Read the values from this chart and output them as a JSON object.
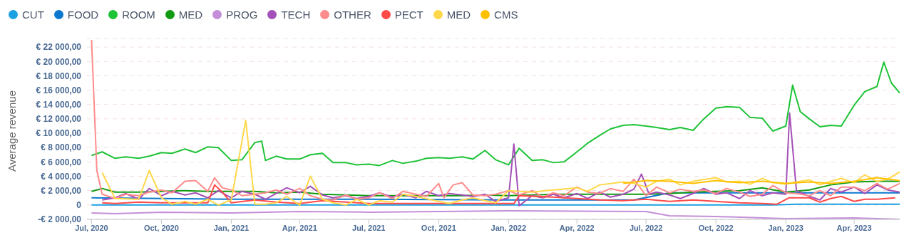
{
  "chart_data": {
    "type": "line",
    "ylabel": "Average revenue",
    "legend": "top left",
    "grid": "y",
    "marker": "none",
    "line_style": "solid",
    "xlim": [
      "2020-06-25",
      "2023-05-31"
    ],
    "xticks": [
      {
        "value": "2020-07-01",
        "label": "Jul, 2020"
      },
      {
        "value": "2020-10-01",
        "label": "Oct, 2020"
      },
      {
        "value": "2021-01-01",
        "label": "Jan, 2021"
      },
      {
        "value": "2021-04-01",
        "label": "Apr, 2021"
      },
      {
        "value": "2021-07-01",
        "label": "Jul, 2021"
      },
      {
        "value": "2021-10-01",
        "label": "Oct, 2021"
      },
      {
        "value": "2022-01-01",
        "label": "Jan, 2022"
      },
      {
        "value": "2022-04-01",
        "label": "Apr, 2022"
      },
      {
        "value": "2022-07-01",
        "label": "Jul, 2022"
      },
      {
        "value": "2022-10-01",
        "label": "Oct, 2022"
      },
      {
        "value": "2023-01-01",
        "label": "Jan, 2023"
      },
      {
        "value": "2023-04-01",
        "label": "Apr, 2023"
      }
    ],
    "ylim": [
      -2000,
      23200
    ],
    "yticks": [
      {
        "value": -2000,
        "label": "-€ 2 000,00"
      },
      0,
      {
        "value": 2000,
        "label": "€ 2 000,00"
      },
      {
        "value": 4000,
        "label": "€ 4 000,00"
      },
      {
        "value": 6000,
        "label": "€ 6 000,00"
      },
      {
        "value": 8000,
        "label": "€ 8 000,00"
      },
      {
        "value": 10000,
        "label": "€ 10 000,00"
      },
      {
        "value": 12000,
        "label": "€ 12 000,00"
      },
      {
        "value": 14000,
        "label": "€ 14 000,00"
      },
      {
        "value": 16000,
        "label": "€ 16 000,00"
      },
      {
        "value": 18000,
        "label": "€ 18 000,00"
      },
      {
        "value": 20000,
        "label": "€ 20 000,00"
      },
      {
        "value": 22000,
        "label": "€ 22 000,00"
      }
    ],
    "series": [
      {
        "name": "CUT",
        "color": "#1ba1e2",
        "x": [
          "2020-07-01",
          "2021-07-01",
          "2022-07-01",
          "2022-12-15",
          "2023-01-15",
          "2023-05-31"
        ],
        "values": [
          0,
          0,
          0,
          0,
          100,
          100
        ]
      },
      {
        "name": "FOOD",
        "color": "#0b78d0",
        "x": [
          "2020-07-01",
          "2021-01-01",
          "2021-07-01",
          "2022-01-01",
          "2022-06-15",
          "2022-08-01",
          "2023-05-31"
        ],
        "values": [
          1000,
          800,
          800,
          700,
          700,
          1700,
          1700
        ]
      },
      {
        "name": "ROOM",
        "color": "#1ec337",
        "x": [
          "2020-07-01",
          "2020-07-15",
          "2020-08-01",
          "2020-08-15",
          "2020-09-01",
          "2020-09-15",
          "2020-10-01",
          "2020-10-15",
          "2020-11-01",
          "2020-11-15",
          "2020-12-01",
          "2020-12-15",
          "2021-01-01",
          "2021-01-15",
          "2021-02-01",
          "2021-02-10",
          "2021-02-15",
          "2021-03-01",
          "2021-03-15",
          "2021-04-01",
          "2021-04-15",
          "2021-05-01",
          "2021-05-15",
          "2021-06-01",
          "2021-06-15",
          "2021-07-01",
          "2021-07-15",
          "2021-08-01",
          "2021-08-15",
          "2021-09-01",
          "2021-09-15",
          "2021-10-01",
          "2021-10-15",
          "2021-11-01",
          "2021-11-15",
          "2021-12-01",
          "2021-12-15",
          "2022-01-01",
          "2022-01-15",
          "2022-02-01",
          "2022-02-15",
          "2022-03-01",
          "2022-03-15",
          "2022-04-01",
          "2022-04-15",
          "2022-05-01",
          "2022-05-15",
          "2022-06-01",
          "2022-06-15",
          "2022-07-01",
          "2022-07-15",
          "2022-08-01",
          "2022-08-15",
          "2022-09-01",
          "2022-09-15",
          "2022-10-01",
          "2022-10-15",
          "2022-11-01",
          "2022-11-15",
          "2022-12-01",
          "2022-12-15",
          "2023-01-01",
          "2023-01-10",
          "2023-01-20",
          "2023-02-01",
          "2023-02-15",
          "2023-03-01",
          "2023-03-15",
          "2023-04-01",
          "2023-04-15",
          "2023-05-01",
          "2023-05-10",
          "2023-05-20",
          "2023-05-31"
        ],
        "values": [
          6900,
          7400,
          6500,
          6700,
          6500,
          6800,
          7300,
          7200,
          7800,
          7300,
          8100,
          8000,
          6200,
          6300,
          8700,
          8900,
          6200,
          6800,
          6400,
          6400,
          7000,
          7200,
          5900,
          5900,
          5600,
          5700,
          5500,
          6200,
          5800,
          6100,
          6500,
          6600,
          6500,
          6700,
          6400,
          7600,
          6300,
          5600,
          7900,
          6200,
          6300,
          5900,
          6000,
          7400,
          8600,
          9700,
          10600,
          11100,
          11200,
          11000,
          10800,
          10500,
          10800,
          10400,
          12000,
          13500,
          13700,
          13600,
          12200,
          12100,
          10300,
          11000,
          16700,
          13000,
          12000,
          10900,
          11100,
          11000,
          13900,
          15800,
          16500,
          19900,
          17000,
          15600
        ]
      },
      {
        "name": "MED",
        "color": "#139a13",
        "x": [
          "2020-07-01",
          "2020-07-15",
          "2020-08-01",
          "2020-09-01",
          "2020-10-01",
          "2020-11-01",
          "2020-12-01",
          "2021-01-01",
          "2021-02-01",
          "2021-03-01",
          "2021-04-01",
          "2021-05-01",
          "2021-06-01",
          "2021-07-01",
          "2021-08-01",
          "2021-09-01",
          "2021-10-01",
          "2021-11-01",
          "2021-12-01",
          "2022-01-01",
          "2022-02-01",
          "2022-03-01",
          "2022-04-01",
          "2022-05-01",
          "2022-06-01",
          "2022-07-01",
          "2022-08-01",
          "2022-09-01",
          "2022-10-01",
          "2022-11-01",
          "2022-12-01",
          "2023-01-01",
          "2023-02-01",
          "2023-03-01",
          "2023-04-01",
          "2023-05-01",
          "2023-05-31"
        ],
        "values": [
          1900,
          2300,
          1800,
          1800,
          1900,
          2000,
          1900,
          1900,
          1900,
          1700,
          1800,
          1500,
          1400,
          1300,
          1300,
          1300,
          1300,
          1300,
          1400,
          1300,
          1400,
          1500,
          1500,
          1500,
          1500,
          1500,
          1600,
          1800,
          1900,
          2000,
          2400,
          1800,
          2100,
          2800,
          3200,
          3300,
          3300
        ]
      },
      {
        "name": "PROG",
        "color": "#c48fd8",
        "x": [
          "2020-07-01",
          "2020-08-01",
          "2020-10-01",
          "2021-01-01",
          "2021-04-01",
          "2021-07-01",
          "2022-01-01",
          "2022-07-01",
          "2022-08-01",
          "2022-10-01",
          "2023-01-01",
          "2023-04-01",
          "2023-05-31"
        ],
        "values": [
          -1100,
          -1200,
          -1000,
          -1100,
          -900,
          -1000,
          -800,
          -900,
          -1500,
          -1600,
          -1900,
          -1800,
          -2000
        ]
      },
      {
        "name": "TECH",
        "color": "#a450b8",
        "x": [
          "2020-07-15",
          "2020-08-01",
          "2020-08-15",
          "2020-09-01",
          "2020-09-15",
          "2020-10-01",
          "2020-10-15",
          "2020-11-01",
          "2020-11-15",
          "2020-12-01",
          "2020-12-15",
          "2021-01-01",
          "2021-01-15",
          "2021-02-01",
          "2021-02-15",
          "2021-03-01",
          "2021-03-15",
          "2021-04-01",
          "2021-04-15",
          "2021-05-01",
          "2021-05-15",
          "2021-06-01",
          "2021-06-15",
          "2021-07-01",
          "2021-07-15",
          "2021-08-01",
          "2021-08-15",
          "2021-09-01",
          "2021-09-15",
          "2021-10-01",
          "2021-10-15",
          "2021-11-01",
          "2021-11-15",
          "2021-12-01",
          "2021-12-15",
          "2022-01-01",
          "2022-01-08",
          "2022-01-15",
          "2022-02-01",
          "2022-02-15",
          "2022-03-01",
          "2022-03-15",
          "2022-04-01",
          "2022-04-15",
          "2022-05-01",
          "2022-05-15",
          "2022-06-01",
          "2022-06-15",
          "2022-06-25",
          "2022-07-05",
          "2022-07-15",
          "2022-08-01",
          "2022-08-15",
          "2022-09-01",
          "2022-09-15",
          "2022-10-01",
          "2022-10-15",
          "2022-11-01",
          "2022-11-15",
          "2022-12-01",
          "2022-12-15",
          "2023-01-01",
          "2023-01-06",
          "2023-01-15",
          "2023-02-01",
          "2023-02-15",
          "2023-03-01",
          "2023-03-15",
          "2023-04-01",
          "2023-04-15",
          "2023-05-01",
          "2023-05-15",
          "2023-05-31"
        ],
        "values": [
          700,
          1000,
          1600,
          800,
          2300,
          1300,
          1900,
          1400,
          1700,
          1000,
          2000,
          1000,
          1900,
          1500,
          800,
          1600,
          2400,
          1700,
          2600,
          1400,
          1000,
          1300,
          900,
          1200,
          1700,
          1100,
          1500,
          1000,
          1900,
          1300,
          1600,
          1400,
          1200,
          1500,
          500,
          1000,
          8500,
          -100,
          1300,
          1000,
          1500,
          1000,
          1600,
          900,
          1800,
          1100,
          1500,
          2200,
          4300,
          1500,
          1800,
          1400,
          900,
          1600,
          2300,
          1500,
          1700,
          900,
          2000,
          1300,
          1700,
          1500,
          12800,
          2000,
          1200,
          700,
          2300,
          1800,
          2500,
          1600,
          2800,
          2100,
          1800
        ]
      },
      {
        "name": "OTHER",
        "color": "#ff8c8c",
        "x": [
          "2020-07-01",
          "2020-07-08",
          "2020-07-15",
          "2020-08-01",
          "2020-08-15",
          "2020-09-01",
          "2020-09-15",
          "2020-10-01",
          "2020-10-15",
          "2020-11-01",
          "2020-11-15",
          "2020-12-01",
          "2020-12-10",
          "2020-12-20",
          "2021-01-01",
          "2021-01-15",
          "2021-02-01",
          "2021-02-15",
          "2021-03-01",
          "2021-03-15",
          "2021-04-01",
          "2021-04-15",
          "2021-05-01",
          "2021-05-15",
          "2021-06-01",
          "2021-06-15",
          "2021-07-01",
          "2021-07-15",
          "2021-08-01",
          "2021-08-15",
          "2021-09-01",
          "2021-09-15",
          "2021-10-01",
          "2021-10-08",
          "2021-10-20",
          "2021-11-01",
          "2021-11-15",
          "2021-12-01",
          "2021-12-15",
          "2022-01-01",
          "2022-01-15",
          "2022-02-01",
          "2022-02-15",
          "2022-03-01",
          "2022-03-15",
          "2022-04-01",
          "2022-04-15",
          "2022-05-01",
          "2022-05-15",
          "2022-06-01",
          "2022-06-15",
          "2022-07-01",
          "2022-07-15",
          "2022-08-01",
          "2022-08-15",
          "2022-09-01",
          "2022-09-15",
          "2022-10-01",
          "2022-10-15",
          "2022-11-01",
          "2022-11-15",
          "2022-12-01",
          "2022-12-15",
          "2023-01-01",
          "2023-01-15",
          "2023-02-01",
          "2023-02-15",
          "2023-03-01",
          "2023-03-15",
          "2023-04-01",
          "2023-04-15",
          "2023-05-01",
          "2023-05-15",
          "2023-05-31"
        ],
        "values": [
          23000,
          4800,
          1500,
          900,
          1500,
          1300,
          1800,
          2100,
          1700,
          3300,
          3400,
          1900,
          3800,
          2400,
          2100,
          1300,
          1500,
          1700,
          2100,
          1500,
          2300,
          1300,
          800,
          700,
          1400,
          800,
          1000,
          1700,
          900,
          1900,
          1500,
          1200,
          3000,
          1000,
          2800,
          3100,
          1400,
          1300,
          1500,
          2000,
          1400,
          2000,
          1100,
          1700,
          1300,
          2500,
          1800,
          1600,
          2300,
          1900,
          3600,
          1300,
          2500,
          1700,
          2200,
          1900,
          2100,
          1600,
          2300,
          1800,
          1200,
          1500,
          2700,
          1700,
          1600,
          1300,
          2000,
          1300,
          2500,
          2500,
          2000,
          3000,
          2200,
          3000
        ]
      },
      {
        "name": "PECT",
        "color": "#ff4a4a",
        "x": [
          "2020-07-15",
          "2020-08-01",
          "2020-09-01",
          "2020-10-01",
          "2020-11-01",
          "2020-12-01",
          "2020-12-10",
          "2020-12-20",
          "2021-01-01",
          "2021-02-01",
          "2021-03-01",
          "2021-04-01",
          "2021-05-01",
          "2021-06-01",
          "2021-07-01",
          "2021-09-01",
          "2021-12-01",
          "2022-01-08",
          "2022-01-15",
          "2022-03-01",
          "2022-05-01",
          "2022-06-01",
          "2022-07-01",
          "2022-08-01",
          "2022-09-01",
          "2022-10-01",
          "2022-11-01",
          "2022-12-01",
          "2022-12-20",
          "2023-01-05",
          "2023-02-01",
          "2023-02-15",
          "2023-03-01",
          "2023-03-15",
          "2023-04-01",
          "2023-04-15",
          "2023-05-01",
          "2023-05-25"
        ],
        "values": [
          300,
          200,
          400,
          300,
          300,
          300,
          2800,
          1800,
          300,
          700,
          400,
          200,
          600,
          400,
          200,
          200,
          200,
          200,
          1300,
          1100,
          700,
          600,
          800,
          500,
          700,
          500,
          300,
          200,
          100,
          1000,
          1000,
          400,
          900,
          1200,
          500,
          800,
          800,
          1000
        ]
      },
      {
        "name": "MED",
        "color": "#ffd84a",
        "x": [
          "2020-07-15",
          "2020-08-01",
          "2020-09-01",
          "2020-09-15",
          "2020-10-01",
          "2020-10-15",
          "2020-11-01",
          "2020-11-15",
          "2020-12-01",
          "2020-12-15",
          "2021-01-01",
          "2021-01-20",
          "2021-02-01",
          "2021-02-15",
          "2021-03-01",
          "2021-03-15",
          "2021-04-01",
          "2021-04-15",
          "2021-05-01",
          "2021-05-15",
          "2021-06-01",
          "2021-06-15",
          "2021-07-01",
          "2021-07-15",
          "2021-08-01",
          "2021-08-15",
          "2021-09-01",
          "2021-10-01",
          "2021-10-15",
          "2021-11-01",
          "2021-11-15",
          "2021-12-01",
          "2021-12-15",
          "2022-01-01",
          "2022-02-01",
          "2022-03-01",
          "2022-04-01",
          "2022-04-15",
          "2022-05-01",
          "2022-06-01",
          "2022-06-15",
          "2022-07-01",
          "2022-07-15",
          "2022-08-01",
          "2022-08-15",
          "2022-09-01",
          "2022-10-01",
          "2022-10-15",
          "2022-11-01",
          "2022-11-15",
          "2022-12-01",
          "2022-12-15",
          "2023-01-01",
          "2023-01-15",
          "2023-02-01",
          "2023-02-15",
          "2023-03-01",
          "2023-03-15",
          "2023-04-01",
          "2023-04-15",
          "2023-05-01",
          "2023-05-15",
          "2023-05-31"
        ],
        "values": [
          4500,
          900,
          800,
          4800,
          1000,
          100,
          500,
          100,
          800,
          0,
          700,
          11800,
          100,
          100,
          300,
          1200,
          0,
          4000,
          800,
          300,
          0,
          800,
          0,
          600,
          400,
          1500,
          1200,
          500,
          200,
          700,
          1000,
          600,
          300,
          2000,
          1800,
          2100,
          2400,
          1900,
          2800,
          3200,
          3000,
          2500,
          3300,
          3600,
          2800,
          3300,
          3800,
          3200,
          3300,
          2900,
          3700,
          3100,
          2900,
          3200,
          3500,
          2800,
          3300,
          3700,
          3100,
          4200,
          3300,
          3600,
          4600
        ]
      },
      {
        "name": "CMS",
        "color": "#ffc000",
        "x": [
          "2022-06-01",
          "2022-07-01",
          "2022-08-01",
          "2022-09-01",
          "2022-10-01",
          "2022-11-01",
          "2022-12-01",
          "2023-01-01",
          "2023-02-01",
          "2023-03-01",
          "2023-04-01",
          "2023-05-01",
          "2023-05-31"
        ],
        "values": [
          3000,
          3400,
          3300,
          3000,
          3400,
          3100,
          3300,
          3000,
          3200,
          3000,
          3300,
          3800,
          3400
        ]
      }
    ]
  }
}
